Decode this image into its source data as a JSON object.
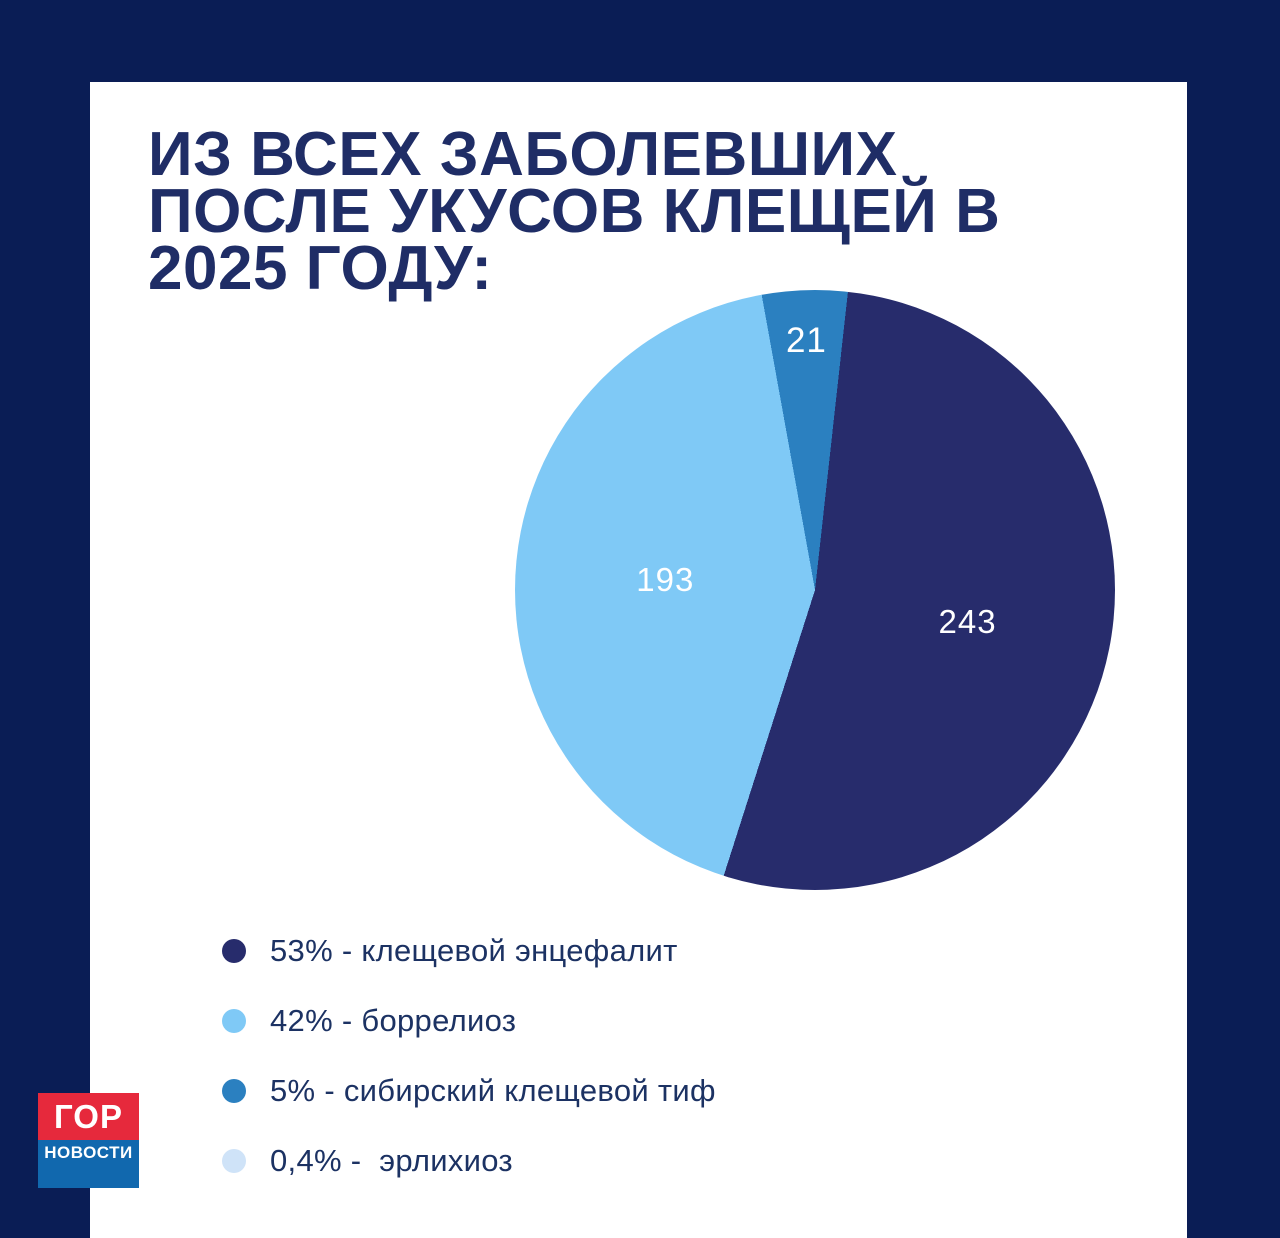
{
  "colors": {
    "background": "#0a1d55",
    "card": "#ffffff",
    "title_text": "#1f2d66",
    "legend_text": "#1c3263",
    "pie_label_text": "#ffffff"
  },
  "title": {
    "lines": [
      "ИЗ ВСЕХ ЗАБОЛЕВШИХ",
      "ПОСЛЕ УКУСОВ КЛЕЩЕЙ В",
      "2025 ГОДУ:"
    ]
  },
  "chart_data": {
    "type": "pie",
    "title": "ИЗ ВСЕХ ЗАБОЛЕВШИХ ПОСЛЕ УКУСОВ КЛЕЩЕЙ В 2025 ГОДУ:",
    "start_angle_deg_clockwise_from_north": 6.3,
    "slices": [
      {
        "name": "клещевой энцефалит",
        "count": 243,
        "percent_label": "53%",
        "value_label": "243",
        "color": "#272c6c"
      },
      {
        "name": "боррелиоз",
        "count": 193,
        "percent_label": "42%",
        "value_label": "193",
        "color": "#7fc9f6"
      },
      {
        "name": "сибирский клещевой тиф",
        "count": 21,
        "percent_label": "5%",
        "value_label": "21",
        "color": "#2b80c0"
      },
      {
        "name": "эрлихиоз",
        "count": null,
        "percent_label": "0,4%",
        "value_label": "",
        "color": "#cfe3f8"
      }
    ],
    "legend_position": "bottom-left",
    "grid": false
  },
  "legend": {
    "items": [
      {
        "label": "53% - клещевой энцефалит",
        "color": "#272c6c"
      },
      {
        "label": "42% - боррелиоз",
        "color": "#7fc9f6"
      },
      {
        "label": "5% - сибирский клещевой тиф",
        "color": "#2b80c0"
      },
      {
        "label": "0,4% -  эрлихиоз",
        "color": "#cfe3f8"
      }
    ]
  },
  "brand": {
    "logo_top": "ГОР",
    "logo_bottom": "НОВОСТИ",
    "red": "#e6293c",
    "blue": "#1168ae"
  }
}
